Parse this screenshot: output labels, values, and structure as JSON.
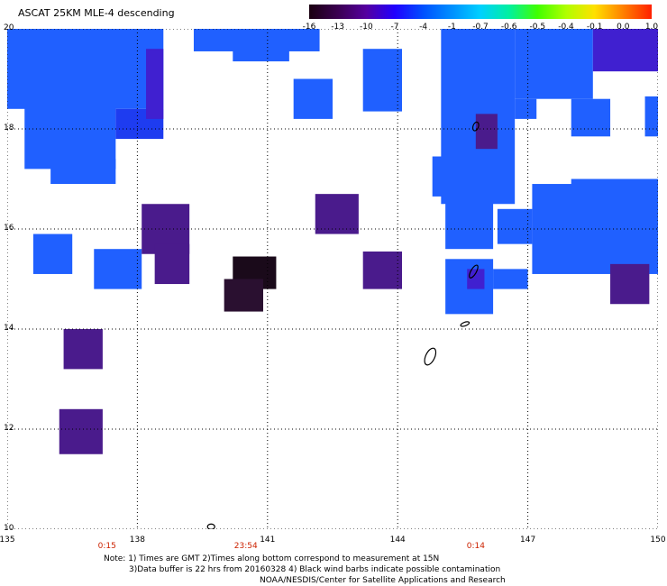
{
  "title": "ASCAT 25KM MLE-4 descending",
  "colorbar": {
    "ticks": [
      "-16",
      "-13",
      "-10",
      "-7",
      "-4",
      "-1",
      "-0.7",
      "-0.6",
      "-0.5",
      "-0.4",
      "-0.1",
      "0.0",
      "1.0"
    ],
    "colors": [
      "#1a0010",
      "#3a0050",
      "#5500a0",
      "#2000ff",
      "#0050ff",
      "#0090ff",
      "#00d0ff",
      "#00f0a0",
      "#40ff00",
      "#b0ff00",
      "#ffe000",
      "#ff8000",
      "#ff2000"
    ]
  },
  "map": {
    "lon_min": 135,
    "lon_max": 150,
    "lat_min": 10,
    "lat_max": 20,
    "lat_labels": [
      "20",
      "18",
      "16",
      "14",
      "12",
      "10"
    ],
    "lon_labels": [
      "135",
      "138",
      "141",
      "144",
      "147",
      "150"
    ],
    "time_labels": [
      {
        "lon": 137.3,
        "text": "0:15"
      },
      {
        "lon": 140.5,
        "text": "23:54"
      },
      {
        "lon": 145.8,
        "text": "0:14"
      }
    ],
    "color_key": {
      "blue": "#2060ff",
      "blue_dark": "#1e3cf0",
      "indigo": "#4020d0",
      "purple": "#4a1b8c",
      "black": "#1a0a1a",
      "black_2": "#2a1030"
    },
    "regions": [
      {
        "lon": [
          135.0,
          138.6
        ],
        "lat": [
          18.4,
          20.0
        ],
        "color": "blue"
      },
      {
        "lon": [
          135.4,
          137.5
        ],
        "lat": [
          17.2,
          18.6
        ],
        "color": "blue"
      },
      {
        "lon": [
          136.0,
          137.5
        ],
        "lat": [
          16.9,
          17.4
        ],
        "color": "blue"
      },
      {
        "lon": [
          137.5,
          138.6
        ],
        "lat": [
          17.8,
          18.4
        ],
        "color": "blue_dark"
      },
      {
        "lon": [
          138.2,
          138.6
        ],
        "lat": [
          18.2,
          19.6
        ],
        "color": "indigo"
      },
      {
        "lon": [
          139.3,
          142.2
        ],
        "lat": [
          19.55,
          20.0
        ],
        "color": "blue"
      },
      {
        "lon": [
          140.2,
          141.5
        ],
        "lat": [
          19.35,
          19.6
        ],
        "color": "blue"
      },
      {
        "lon": [
          141.6,
          142.5
        ],
        "lat": [
          18.2,
          19.0
        ],
        "color": "blue"
      },
      {
        "lon": [
          143.2,
          144.1
        ],
        "lat": [
          18.35,
          19.6
        ],
        "color": "blue"
      },
      {
        "lon": [
          145.0,
          146.7
        ],
        "lat": [
          16.5,
          20.0
        ],
        "color": "blue"
      },
      {
        "lon": [
          146.7,
          148.5
        ],
        "lat": [
          18.6,
          20.0
        ],
        "color": "blue"
      },
      {
        "lon": [
          146.7,
          147.2
        ],
        "lat": [
          18.2,
          18.6
        ],
        "color": "blue"
      },
      {
        "lon": [
          148.5,
          150.0
        ],
        "lat": [
          19.15,
          20.0
        ],
        "color": "indigo"
      },
      {
        "lon": [
          148.0,
          148.9
        ],
        "lat": [
          17.85,
          18.6
        ],
        "color": "blue"
      },
      {
        "lon": [
          149.7,
          150.0
        ],
        "lat": [
          17.85,
          18.65
        ],
        "color": "blue"
      },
      {
        "lon": [
          144.8,
          145.7
        ],
        "lat": [
          16.65,
          17.45
        ],
        "color": "blue"
      },
      {
        "lon": [
          145.1,
          146.2
        ],
        "lat": [
          15.6,
          16.7
        ],
        "color": "blue"
      },
      {
        "lon": [
          146.3,
          147.1
        ],
        "lat": [
          15.7,
          16.4
        ],
        "color": "blue"
      },
      {
        "lon": [
          147.1,
          150.0
        ],
        "lat": [
          15.1,
          16.9
        ],
        "color": "blue"
      },
      {
        "lon": [
          148.0,
          150.0
        ],
        "lat": [
          16.7,
          17.0
        ],
        "color": "blue"
      },
      {
        "lon": [
          145.1,
          146.2
        ],
        "lat": [
          14.3,
          15.4
        ],
        "color": "blue"
      },
      {
        "lon": [
          146.2,
          147.0
        ],
        "lat": [
          14.8,
          15.2
        ],
        "color": "blue"
      },
      {
        "lon": [
          148.9,
          149.8
        ],
        "lat": [
          14.5,
          15.3
        ],
        "color": "purple"
      },
      {
        "lon": [
          145.8,
          146.3
        ],
        "lat": [
          17.6,
          18.3
        ],
        "color": "purple"
      },
      {
        "lon": [
          145.6,
          146.0
        ],
        "lat": [
          14.8,
          15.2
        ],
        "color": "indigo"
      },
      {
        "lon": [
          135.6,
          136.5
        ],
        "lat": [
          15.1,
          15.9
        ],
        "color": "blue"
      },
      {
        "lon": [
          137.0,
          138.1
        ],
        "lat": [
          14.8,
          15.6
        ],
        "color": "blue"
      },
      {
        "lon": [
          138.1,
          139.2
        ],
        "lat": [
          15.5,
          16.5
        ],
        "color": "purple"
      },
      {
        "lon": [
          138.4,
          139.2
        ],
        "lat": [
          14.9,
          15.7
        ],
        "color": "purple"
      },
      {
        "lon": [
          140.2,
          141.2
        ],
        "lat": [
          14.8,
          15.45
        ],
        "color": "black"
      },
      {
        "lon": [
          140.0,
          140.9
        ],
        "lat": [
          14.35,
          15.0
        ],
        "color": "black_2"
      },
      {
        "lon": [
          142.1,
          143.1
        ],
        "lat": [
          15.9,
          16.7
        ],
        "color": "purple"
      },
      {
        "lon": [
          143.2,
          144.1
        ],
        "lat": [
          14.8,
          15.55
        ],
        "color": "purple"
      },
      {
        "lon": [
          136.3,
          137.2
        ],
        "lat": [
          13.2,
          14.0
        ],
        "color": "purple"
      },
      {
        "lon": [
          136.2,
          137.2
        ],
        "lat": [
          11.5,
          12.4
        ],
        "color": "purple"
      }
    ]
  },
  "footer": {
    "line1": "Note: 1) Times are GMT 2)Times along bottom correspond to measurement at 15N",
    "line2": "3)Data buffer is 22 hrs from 20160328 4) Black wind barbs indicate possible contamination",
    "line3": "NOAA/NESDIS/Center for Satellite Applications and Research"
  }
}
